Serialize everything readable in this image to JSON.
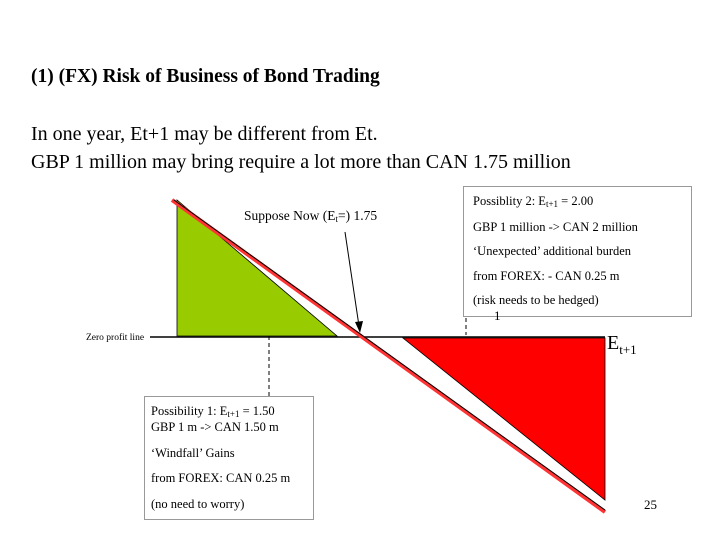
{
  "slide": {
    "title": "(1) (FX) Risk of Business of Bond Trading",
    "body_lines": [
      "In one year, Et+1 may be different from Et.",
      "GBP 1 million may bring require a lot more than CAN 1.75 million"
    ]
  },
  "diagram": {
    "suppose_now_prefix": "Suppose Now   (E",
    "suppose_now_sub": "t",
    "suppose_now_suffix": "=) 1.75",
    "zero_profit_label": "Zero profit line",
    "axis_label_main": "E",
    "axis_label_sub": "t+1",
    "stray_mark": "1",
    "colors": {
      "gain_triangle": "#99cc00",
      "loss_triangle": "#ff0000",
      "price_line_highlight": "#ff3333",
      "price_line_core": "#000000"
    },
    "possibility_2": {
      "line1_prefix": "Possiblity 2: E",
      "line1_sub": "t+1",
      "line1_suffix": " = 2.00",
      "line2": "GBP 1 million  -> CAN 2 million",
      "line3": "‘Unexpected’ additional burden",
      "line4": "from FOREX: - CAN  0.25 m",
      "line5": "(risk needs to be hedged)"
    },
    "possibility_1": {
      "line1_prefix": "Possibility 1: E",
      "line1_sub": "t+1",
      "line1_suffix": " = 1.50",
      "line2": "GBP 1 m -> CAN 1.50 m",
      "line3": "‘Windfall’ Gains",
      "line4": "from FOREX:  CAN 0.25 m",
      "line5": "(no need to worry)"
    }
  },
  "page_number": "25"
}
